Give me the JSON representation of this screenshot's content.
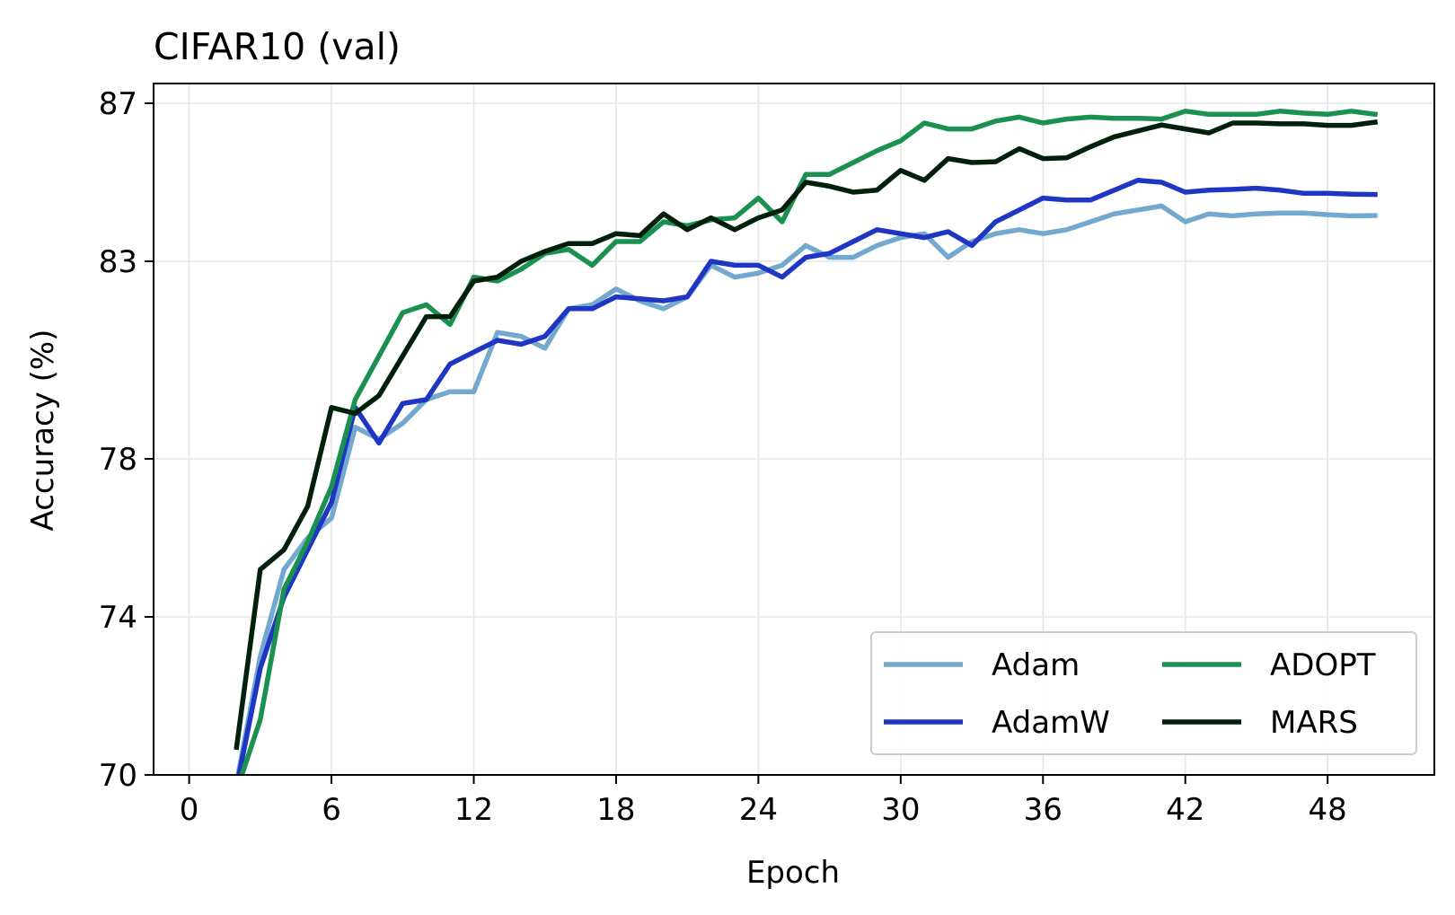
{
  "chart_data": {
    "type": "line",
    "title": "CIFAR10 (val)",
    "xlabel": "Epoch",
    "ylabel": "Accuracy (%)",
    "xlim": [
      -1.5,
      52.5
    ],
    "ylim": [
      70,
      87.5
    ],
    "xticks": [
      0,
      6,
      12,
      18,
      24,
      30,
      36,
      42,
      48
    ],
    "yticks": [
      70,
      74,
      78,
      83,
      87
    ],
    "grid": true,
    "legend_position": "lower-right",
    "legend_columns": 2,
    "series": [
      {
        "name": "Adam",
        "color": "#74a9cf",
        "x": [
          2,
          3,
          4,
          5,
          6,
          7,
          8,
          9,
          10,
          11,
          12,
          13,
          14,
          15,
          16,
          17,
          18,
          19,
          20,
          21,
          22,
          23,
          24,
          25,
          26,
          27,
          28,
          29,
          30,
          31,
          32,
          33,
          34,
          35,
          36,
          37,
          38,
          39,
          40,
          41,
          42,
          43,
          44,
          45,
          46,
          47,
          48,
          49,
          50
        ],
        "values": [
          69.8,
          73.0,
          75.2,
          76.0,
          76.5,
          78.8,
          78.5,
          78.9,
          79.5,
          79.7,
          79.7,
          81.2,
          81.1,
          80.8,
          81.8,
          81.9,
          82.3,
          82.0,
          81.8,
          82.1,
          82.9,
          82.6,
          82.7,
          82.9,
          83.4,
          83.1,
          83.1,
          83.4,
          83.6,
          83.7,
          83.1,
          83.5,
          83.7,
          83.8,
          83.7,
          83.8,
          84.0,
          84.2,
          84.3,
          84.4,
          84.0,
          84.2,
          84.15,
          84.2,
          84.22,
          84.22,
          84.18,
          84.15,
          84.16
        ]
      },
      {
        "name": "AdamW",
        "color": "#1f35c3",
        "x": [
          2,
          3,
          4,
          5,
          6,
          7,
          8,
          9,
          10,
          11,
          12,
          13,
          14,
          15,
          16,
          17,
          18,
          19,
          20,
          21,
          22,
          23,
          24,
          25,
          26,
          27,
          28,
          29,
          30,
          31,
          32,
          33,
          34,
          35,
          36,
          37,
          38,
          39,
          40,
          41,
          42,
          43,
          44,
          45,
          46,
          47,
          48,
          49,
          50
        ],
        "values": [
          69.7,
          72.7,
          74.5,
          75.7,
          76.9,
          79.3,
          78.4,
          79.4,
          79.5,
          80.4,
          80.7,
          81.0,
          80.9,
          81.1,
          81.8,
          81.8,
          82.1,
          82.05,
          82.0,
          82.1,
          83.0,
          82.9,
          82.9,
          82.6,
          83.1,
          83.2,
          83.5,
          83.8,
          83.7,
          83.6,
          83.75,
          83.4,
          84.0,
          84.3,
          84.6,
          84.55,
          84.55,
          84.8,
          85.05,
          85.0,
          84.75,
          84.8,
          84.82,
          84.85,
          84.8,
          84.72,
          84.72,
          84.7,
          84.69
        ]
      },
      {
        "name": "ADOPT",
        "color": "#1a9150",
        "x": [
          2,
          3,
          4,
          5,
          6,
          7,
          8,
          9,
          10,
          11,
          12,
          13,
          14,
          15,
          16,
          17,
          18,
          19,
          20,
          21,
          22,
          23,
          24,
          25,
          26,
          27,
          28,
          29,
          30,
          31,
          32,
          33,
          34,
          35,
          36,
          37,
          38,
          39,
          40,
          41,
          42,
          43,
          44,
          45,
          46,
          47,
          48,
          49,
          50
        ],
        "values": [
          69.6,
          71.4,
          74.7,
          75.9,
          77.3,
          79.5,
          80.6,
          81.7,
          81.9,
          81.4,
          82.6,
          82.5,
          82.8,
          83.2,
          83.3,
          82.9,
          83.5,
          83.5,
          84.0,
          83.9,
          84.05,
          84.1,
          84.6,
          84.0,
          85.2,
          85.2,
          85.5,
          85.8,
          86.05,
          86.5,
          86.35,
          86.35,
          86.55,
          86.65,
          86.5,
          86.6,
          86.65,
          86.62,
          86.62,
          86.6,
          86.8,
          86.72,
          86.72,
          86.72,
          86.8,
          86.75,
          86.72,
          86.8,
          86.72
        ]
      },
      {
        "name": "MARS",
        "color": "#00200b",
        "x": [
          2,
          3,
          4,
          5,
          6,
          7,
          8,
          9,
          10,
          11,
          12,
          13,
          14,
          15,
          16,
          17,
          18,
          19,
          20,
          21,
          22,
          23,
          24,
          25,
          26,
          27,
          28,
          29,
          30,
          31,
          32,
          33,
          34,
          35,
          36,
          37,
          38,
          39,
          40,
          41,
          42,
          43,
          44,
          45,
          46,
          47,
          48,
          49,
          50
        ],
        "values": [
          70.7,
          75.2,
          75.7,
          76.8,
          79.3,
          79.15,
          79.6,
          80.6,
          81.6,
          81.6,
          82.5,
          82.6,
          83.0,
          83.25,
          83.45,
          83.45,
          83.7,
          83.65,
          84.2,
          83.8,
          84.1,
          83.8,
          84.1,
          84.3,
          85.0,
          84.9,
          84.75,
          84.8,
          85.3,
          85.05,
          85.6,
          85.5,
          85.52,
          85.85,
          85.6,
          85.62,
          85.9,
          86.15,
          86.3,
          86.45,
          86.35,
          86.25,
          86.5,
          86.5,
          86.48,
          86.48,
          86.44,
          86.44,
          86.52
        ]
      }
    ]
  }
}
